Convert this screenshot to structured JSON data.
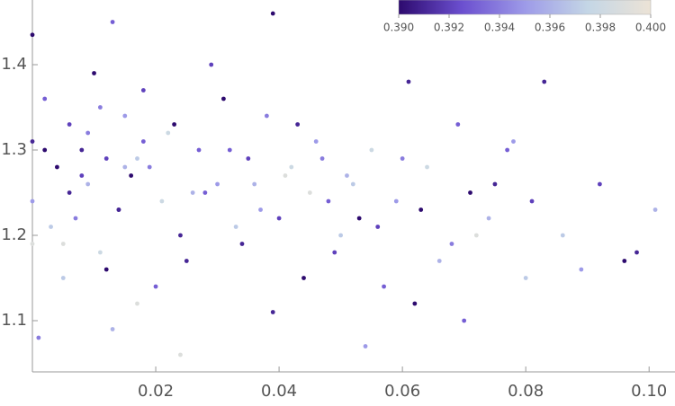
{
  "chart_data": {
    "type": "scatter",
    "x": [
      0.0,
      0.0,
      0.0,
      0.0,
      0.002,
      0.004,
      0.005,
      0.006,
      0.007,
      0.008,
      0.009,
      0.01,
      0.011,
      0.012,
      0.013,
      0.014,
      0.015,
      0.016,
      0.017,
      0.018,
      0.003,
      0.006,
      0.009,
      0.012,
      0.015,
      0.018,
      0.021,
      0.024,
      0.027,
      0.03,
      0.002,
      0.005,
      0.008,
      0.011,
      0.014,
      0.017,
      0.02,
      0.023,
      0.026,
      0.029,
      0.019,
      0.022,
      0.025,
      0.028,
      0.031,
      0.033,
      0.035,
      0.037,
      0.039,
      0.041,
      0.032,
      0.034,
      0.036,
      0.038,
      0.04,
      0.042,
      0.044,
      0.046,
      0.048,
      0.05,
      0.043,
      0.045,
      0.047,
      0.049,
      0.051,
      0.053,
      0.055,
      0.057,
      0.059,
      0.061,
      0.052,
      0.056,
      0.06,
      0.063,
      0.066,
      0.069,
      0.072,
      0.075,
      0.078,
      0.081,
      0.064,
      0.068,
      0.071,
      0.074,
      0.077,
      0.083,
      0.086,
      0.089,
      0.092,
      0.096,
      0.001,
      0.013,
      0.024,
      0.039,
      0.054,
      0.062,
      0.07,
      0.08,
      0.098,
      0.101
    ],
    "y": [
      1.435,
      1.31,
      1.24,
      1.19,
      1.36,
      1.28,
      1.15,
      1.33,
      1.22,
      1.3,
      1.26,
      1.39,
      1.18,
      1.29,
      1.45,
      1.23,
      1.34,
      1.27,
      1.12,
      1.31,
      1.21,
      1.25,
      1.32,
      1.16,
      1.28,
      1.37,
      1.24,
      1.2,
      1.3,
      1.26,
      1.3,
      1.19,
      1.27,
      1.35,
      1.23,
      1.29,
      1.14,
      1.33,
      1.25,
      1.4,
      1.28,
      1.32,
      1.17,
      1.25,
      1.36,
      1.21,
      1.29,
      1.23,
      1.46,
      1.27,
      1.3,
      1.19,
      1.26,
      1.34,
      1.22,
      1.28,
      1.15,
      1.31,
      1.24,
      1.2,
      1.33,
      1.25,
      1.29,
      1.18,
      1.27,
      1.22,
      1.3,
      1.14,
      1.24,
      1.38,
      1.26,
      1.21,
      1.29,
      1.23,
      1.17,
      1.33,
      1.2,
      1.26,
      1.31,
      1.24,
      1.28,
      1.19,
      1.25,
      1.22,
      1.3,
      1.38,
      1.2,
      1.16,
      1.26,
      1.17,
      1.08,
      1.09,
      1.06,
      1.11,
      1.07,
      1.12,
      1.1,
      1.15,
      1.18,
      1.23
    ],
    "color_values": [
      0.39,
      0.391,
      0.395,
      0.399,
      0.393,
      0.39,
      0.397,
      0.392,
      0.394,
      0.391,
      0.396,
      0.39,
      0.398,
      0.392,
      0.393,
      0.391,
      0.395,
      0.39,
      0.399,
      0.393,
      0.397,
      0.391,
      0.394,
      0.39,
      0.396,
      0.392,
      0.398,
      0.391,
      0.393,
      0.395,
      0.39,
      0.399,
      0.392,
      0.394,
      0.391,
      0.397,
      0.393,
      0.39,
      0.396,
      0.392,
      0.394,
      0.398,
      0.391,
      0.393,
      0.39,
      0.397,
      0.392,
      0.395,
      0.39,
      0.399,
      0.393,
      0.391,
      0.396,
      0.394,
      0.392,
      0.398,
      0.39,
      0.395,
      0.393,
      0.397,
      0.391,
      0.399,
      0.394,
      0.392,
      0.396,
      0.39,
      0.398,
      0.393,
      0.395,
      0.391,
      0.397,
      0.392,
      0.394,
      0.39,
      0.396,
      0.393,
      0.399,
      0.391,
      0.395,
      0.392,
      0.398,
      0.394,
      0.39,
      0.396,
      0.393,
      0.391,
      0.397,
      0.395,
      0.392,
      0.39,
      0.394,
      0.396,
      0.399,
      0.391,
      0.395,
      0.39,
      0.393,
      0.397,
      0.391,
      0.396
    ],
    "colormap": [
      "#2d0a6e",
      "#6b4fcf",
      "#9d9ae8",
      "#c4d6e6",
      "#ece3d6"
    ],
    "colorbar_lim": [
      0.39,
      0.4
    ],
    "colorbar_ticks": [
      {
        "value": 0.39,
        "label": "0.390"
      },
      {
        "value": 0.392,
        "label": "0.392"
      },
      {
        "value": 0.394,
        "label": "0.394"
      },
      {
        "value": 0.396,
        "label": "0.396"
      },
      {
        "value": 0.398,
        "label": "0.398"
      },
      {
        "value": 0.4,
        "label": "0.400"
      }
    ],
    "xlim": [
      0,
      0.1042
    ],
    "ylim": [
      1.04,
      1.4758
    ],
    "xticks": [
      0.02,
      0.04,
      0.06,
      0.08,
      {
        "value": 0.1,
        "label": "0.10"
      }
    ],
    "yticks": [
      1.1,
      1.2,
      1.3,
      1.4
    ]
  }
}
